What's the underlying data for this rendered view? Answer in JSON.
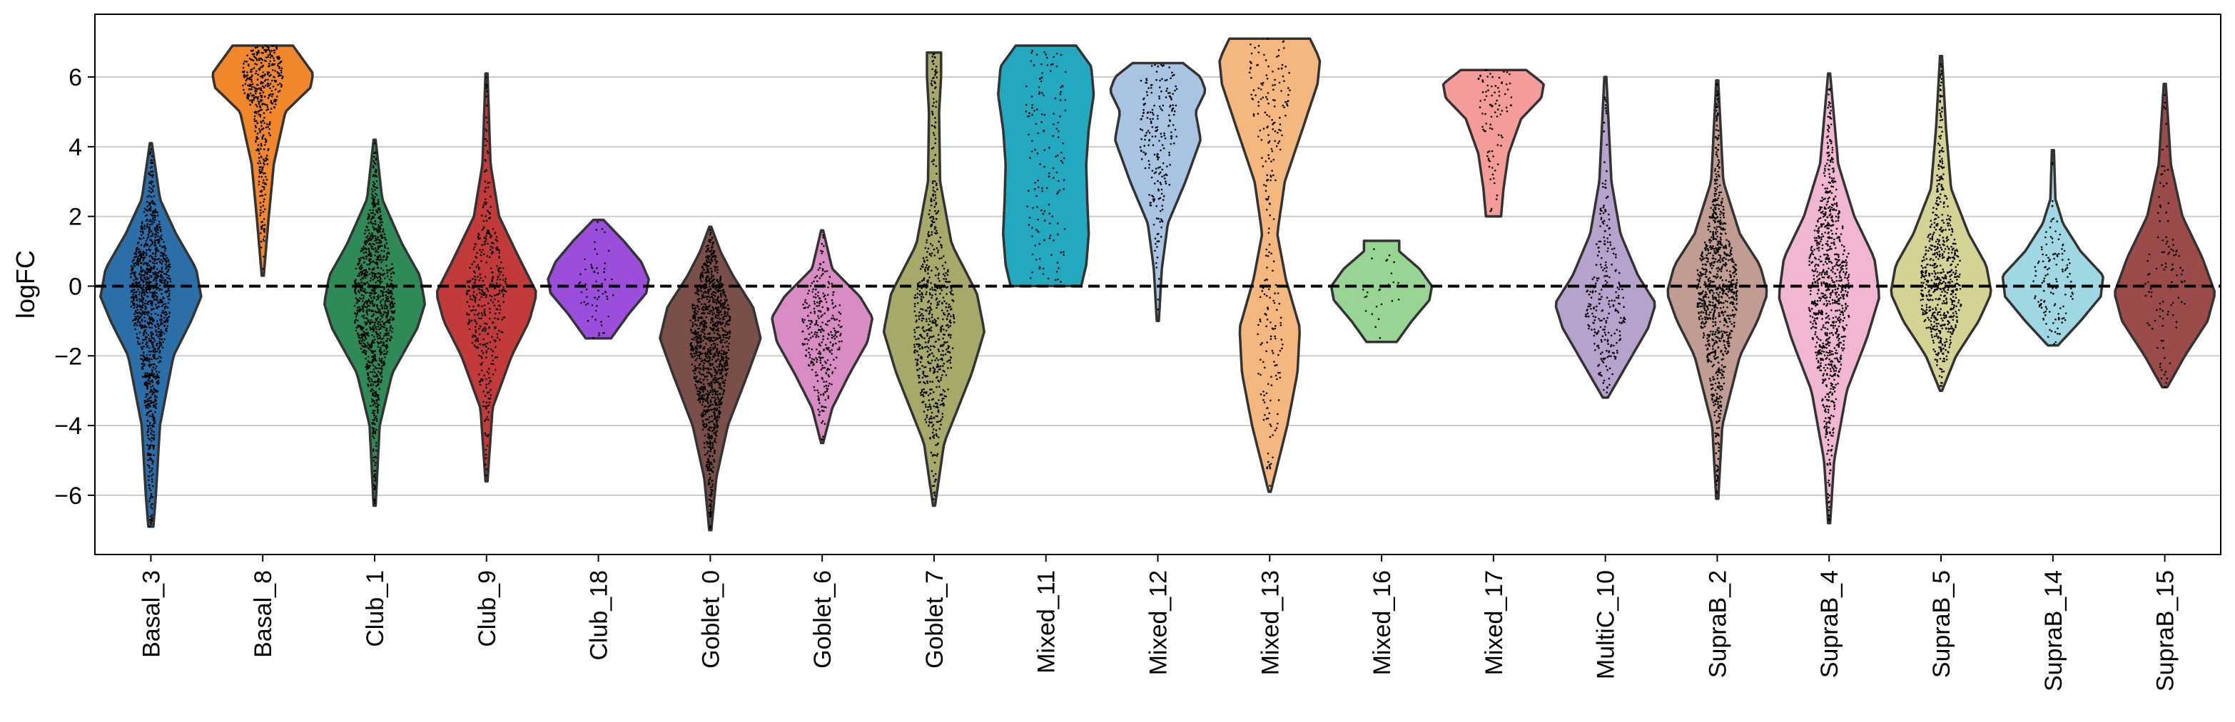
{
  "chart_data": {
    "type": "violin",
    "ylabel": "logFC",
    "ylim": [
      -7.7,
      7.8
    ],
    "yticks": [
      -6,
      -4,
      -2,
      0,
      2,
      4,
      6
    ],
    "grid": "horizontal",
    "reference_line": 0,
    "categories": [
      "Basal_3",
      "Basal_8",
      "Club_1",
      "Club_9",
      "Club_18",
      "Goblet_0",
      "Goblet_6",
      "Goblet_7",
      "Mixed_11",
      "Mixed_12",
      "Mixed_13",
      "Mixed_16",
      "Mixed_17",
      "MultiC_10",
      "SupraB_2",
      "SupraB_4",
      "SupraB_5",
      "SupraB_14",
      "SupraB_15"
    ],
    "colors": [
      "#2a6fa8",
      "#f0872a",
      "#2e8b57",
      "#c33a3a",
      "#9b4ddc",
      "#7b4f49",
      "#d98bc4",
      "#a7a969",
      "#22a9bf",
      "#a9c3e3",
      "#f4b77e",
      "#98d494",
      "#f49c9a",
      "#b6a2cc",
      "#c09c93",
      "#f1b6d2",
      "#d5d394",
      "#9fd8e2",
      "#9c4b4b"
    ],
    "violins": [
      {
        "name": "Basal_3",
        "min": -6.9,
        "max": 4.1,
        "profile": [
          [
            -6.9,
            0.05
          ],
          [
            -6,
            0.1
          ],
          [
            -4,
            0.18
          ],
          [
            -2,
            0.45
          ],
          [
            -1,
            0.8
          ],
          [
            -0.3,
            1
          ],
          [
            0.5,
            0.9
          ],
          [
            1.5,
            0.5
          ],
          [
            2.5,
            0.18
          ],
          [
            4.1,
            0.02
          ]
        ],
        "points": 1200,
        "center": -0.3,
        "spread": 1.6
      },
      {
        "name": "Basal_8",
        "min": 0.3,
        "max": 6.9,
        "profile": [
          [
            0.3,
            0.02
          ],
          [
            2,
            0.12
          ],
          [
            3.5,
            0.22
          ],
          [
            5,
            0.45
          ],
          [
            5.7,
            0.95
          ],
          [
            6.1,
            1
          ],
          [
            6.5,
            0.8
          ],
          [
            6.9,
            0.6
          ]
        ],
        "points": 450,
        "center": 5.5,
        "spread": 1.1
      },
      {
        "name": "Club_1",
        "min": -6.3,
        "max": 4.2,
        "profile": [
          [
            -6.3,
            0.02
          ],
          [
            -4,
            0.1
          ],
          [
            -2.5,
            0.35
          ],
          [
            -1.2,
            0.85
          ],
          [
            -0.5,
            1
          ],
          [
            0.3,
            0.9
          ],
          [
            1.2,
            0.55
          ],
          [
            2.5,
            0.15
          ],
          [
            4.2,
            0.02
          ]
        ],
        "points": 1100,
        "center": -0.5,
        "spread": 1.3
      },
      {
        "name": "Club_9",
        "min": -5.6,
        "max": 6.1,
        "profile": [
          [
            -5.6,
            0.02
          ],
          [
            -3.5,
            0.12
          ],
          [
            -2,
            0.5
          ],
          [
            -1,
            0.85
          ],
          [
            -0.2,
            1
          ],
          [
            0.8,
            0.65
          ],
          [
            2,
            0.25
          ],
          [
            3.5,
            0.08
          ],
          [
            6.1,
            0.02
          ]
        ],
        "points": 420,
        "center": -0.2,
        "spread": 1.5
      },
      {
        "name": "Club_18",
        "min": -1.5,
        "max": 1.9,
        "profile": [
          [
            -1.5,
            0.25
          ],
          [
            -0.8,
            0.6
          ],
          [
            -0.2,
            0.95
          ],
          [
            0.2,
            1
          ],
          [
            0.7,
            0.85
          ],
          [
            1.3,
            0.5
          ],
          [
            1.9,
            0.1
          ]
        ],
        "points": 60,
        "center": 0.1,
        "spread": 0.7
      },
      {
        "name": "Goblet_0",
        "min": -7.0,
        "max": 1.7,
        "profile": [
          [
            -7,
            0.02
          ],
          [
            -5.5,
            0.12
          ],
          [
            -4,
            0.35
          ],
          [
            -2.5,
            0.75
          ],
          [
            -1.5,
            1
          ],
          [
            -0.6,
            0.85
          ],
          [
            0.3,
            0.45
          ],
          [
            1.0,
            0.2
          ],
          [
            1.7,
            0.02
          ]
        ],
        "points": 1200,
        "center": -1.5,
        "spread": 1.5
      },
      {
        "name": "Goblet_6",
        "min": -4.5,
        "max": 1.6,
        "profile": [
          [
            -4.5,
            0.02
          ],
          [
            -3.5,
            0.2
          ],
          [
            -2.5,
            0.55
          ],
          [
            -1.6,
            0.9
          ],
          [
            -0.9,
            1
          ],
          [
            -0.3,
            0.75
          ],
          [
            0.5,
            0.2
          ],
          [
            1.6,
            0.02
          ]
        ],
        "points": 300,
        "center": -1.2,
        "spread": 1.0
      },
      {
        "name": "Goblet_7",
        "min": -6.3,
        "max": 6.7,
        "profile": [
          [
            -6.3,
            0.02
          ],
          [
            -4.5,
            0.2
          ],
          [
            -2.5,
            0.75
          ],
          [
            -1.3,
            1
          ],
          [
            -0.2,
            0.85
          ],
          [
            1.2,
            0.35
          ],
          [
            3,
            0.12
          ],
          [
            5,
            0.1
          ],
          [
            6.0,
            0.14
          ],
          [
            6.7,
            0.14
          ]
        ],
        "points": 650,
        "center": -1.0,
        "spread": 1.8
      },
      {
        "name": "Mixed_11",
        "min": 0,
        "max": 6.9,
        "profile": [
          [
            0,
            0.7
          ],
          [
            0.6,
            0.8
          ],
          [
            1.5,
            0.85
          ],
          [
            2.5,
            0.82
          ],
          [
            3.5,
            0.8
          ],
          [
            4.5,
            0.85
          ],
          [
            5.5,
            0.95
          ],
          [
            6.3,
            0.9
          ],
          [
            6.9,
            0.6
          ]
        ],
        "points": 150,
        "center": 3.5,
        "spread": 2.0
      },
      {
        "name": "Mixed_12",
        "min": -1.0,
        "max": 6.4,
        "profile": [
          [
            -1,
            0.02
          ],
          [
            0.5,
            0.08
          ],
          [
            1.8,
            0.2
          ],
          [
            3,
            0.55
          ],
          [
            4.2,
            0.85
          ],
          [
            5.0,
            0.75
          ],
          [
            5.6,
            0.95
          ],
          [
            6.0,
            0.85
          ],
          [
            6.4,
            0.5
          ]
        ],
        "points": 220,
        "center": 4.5,
        "spread": 1.5
      },
      {
        "name": "Mixed_13",
        "min": -5.9,
        "max": 7.1,
        "profile": [
          [
            -5.9,
            0.02
          ],
          [
            -4,
            0.35
          ],
          [
            -2.5,
            0.55
          ],
          [
            -1.2,
            0.6
          ],
          [
            0.2,
            0.32
          ],
          [
            1.5,
            0.15
          ],
          [
            3,
            0.3
          ],
          [
            4.5,
            0.65
          ],
          [
            5.8,
            0.95
          ],
          [
            6.5,
            1
          ],
          [
            7.1,
            0.8
          ]
        ],
        "points": 250,
        "center": 2.5,
        "spread": 3.5
      },
      {
        "name": "Mixed_16",
        "min": -1.6,
        "max": 1.3,
        "profile": [
          [
            -1.6,
            0.3
          ],
          [
            -1,
            0.6
          ],
          [
            -0.4,
            0.95
          ],
          [
            0,
            1
          ],
          [
            0.5,
            0.75
          ],
          [
            1.0,
            0.35
          ],
          [
            1.3,
            0.35
          ]
        ],
        "points": 25,
        "center": 0,
        "spread": 0.7
      },
      {
        "name": "Mixed_17",
        "min": 2.0,
        "max": 6.2,
        "profile": [
          [
            2.0,
            0.15
          ],
          [
            2.8,
            0.2
          ],
          [
            3.8,
            0.3
          ],
          [
            4.8,
            0.55
          ],
          [
            5.4,
            0.95
          ],
          [
            5.8,
            1
          ],
          [
            6.2,
            0.65
          ]
        ],
        "points": 90,
        "center": 5.4,
        "spread": 0.8
      },
      {
        "name": "MultiC_10",
        "min": -3.2,
        "max": 6.0,
        "profile": [
          [
            -3.2,
            0.05
          ],
          [
            -2.2,
            0.45
          ],
          [
            -1.2,
            0.85
          ],
          [
            -0.5,
            1
          ],
          [
            0.3,
            0.65
          ],
          [
            1.5,
            0.3
          ],
          [
            3,
            0.12
          ],
          [
            6.0,
            0.02
          ]
        ],
        "points": 260,
        "center": -0.4,
        "spread": 1.3
      },
      {
        "name": "SupraB_2",
        "min": -6.1,
        "max": 5.9,
        "profile": [
          [
            -6.1,
            0.02
          ],
          [
            -4,
            0.1
          ],
          [
            -2,
            0.45
          ],
          [
            -1,
            0.8
          ],
          [
            -0.2,
            1
          ],
          [
            0.6,
            0.85
          ],
          [
            1.5,
            0.45
          ],
          [
            3,
            0.12
          ],
          [
            5.9,
            0.02
          ]
        ],
        "points": 900,
        "center": -0.2,
        "spread": 1.3
      },
      {
        "name": "SupraB_4",
        "min": -6.8,
        "max": 6.1,
        "profile": [
          [
            -6.8,
            0.02
          ],
          [
            -5,
            0.1
          ],
          [
            -3,
            0.35
          ],
          [
            -1.5,
            0.75
          ],
          [
            -0.3,
            1
          ],
          [
            0.8,
            0.9
          ],
          [
            2,
            0.5
          ],
          [
            3.5,
            0.18
          ],
          [
            6.1,
            0.02
          ]
        ],
        "points": 900,
        "center": 0,
        "spread": 1.6
      },
      {
        "name": "SupraB_5",
        "min": -3.0,
        "max": 6.6,
        "profile": [
          [
            -3,
            0.02
          ],
          [
            -2,
            0.3
          ],
          [
            -1,
            0.75
          ],
          [
            -0.2,
            1
          ],
          [
            0.6,
            0.9
          ],
          [
            1.5,
            0.55
          ],
          [
            2.8,
            0.2
          ],
          [
            4.5,
            0.1
          ],
          [
            6.6,
            0.02
          ]
        ],
        "points": 650,
        "center": 0.1,
        "spread": 1.3
      },
      {
        "name": "SupraB_14",
        "min": -1.7,
        "max": 3.9,
        "profile": [
          [
            -1.7,
            0.1
          ],
          [
            -1,
            0.55
          ],
          [
            -0.3,
            0.95
          ],
          [
            0.3,
            1
          ],
          [
            1,
            0.55
          ],
          [
            1.8,
            0.2
          ],
          [
            2.5,
            0.05
          ],
          [
            3.9,
            0.02
          ]
        ],
        "points": 130,
        "center": 0,
        "spread": 0.7
      },
      {
        "name": "SupraB_15",
        "min": -2.9,
        "max": 5.8,
        "profile": [
          [
            -2.9,
            0.05
          ],
          [
            -2,
            0.4
          ],
          [
            -1,
            0.85
          ],
          [
            -0.2,
            1
          ],
          [
            0.8,
            0.75
          ],
          [
            2,
            0.35
          ],
          [
            3.5,
            0.12
          ],
          [
            5.8,
            0.02
          ]
        ],
        "points": 110,
        "center": -0.2,
        "spread": 1.3
      }
    ]
  }
}
